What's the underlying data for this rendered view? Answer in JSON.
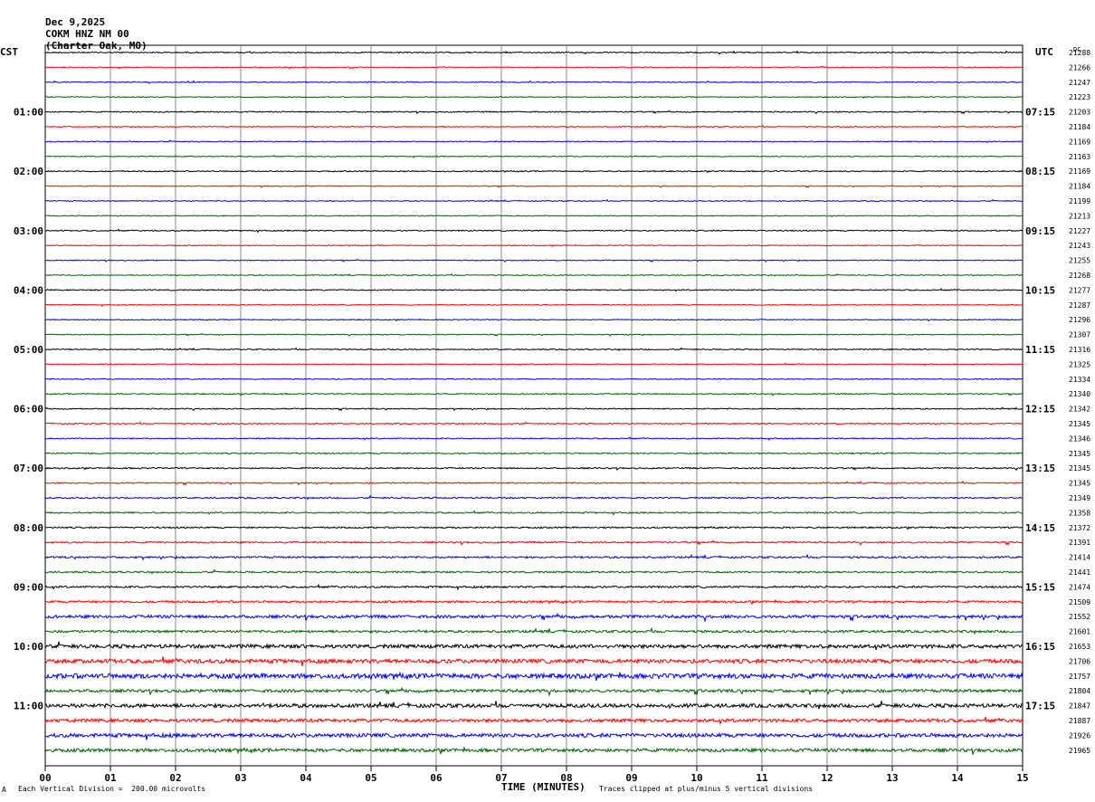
{
  "header": {
    "date": "Dec 9,2025",
    "station": "COKM HNZ NM 00",
    "location": "(Charter Oak, MO)"
  },
  "labels": {
    "left_tz": "CST",
    "right_tz": "UTC",
    "dc": "DC"
  },
  "footer": {
    "left_mark": "A",
    "scale_note": "Each Vertical Division =  200.00 microvolts",
    "clip_note": "Traces clipped at plus/minus 5 vertical divisions"
  },
  "chart_data": {
    "type": "line",
    "title": "",
    "xlabel": "TIME (MINUTES)",
    "ylabel": "",
    "xlim": [
      0,
      15
    ],
    "x_ticks": [
      "00",
      "01",
      "02",
      "03",
      "04",
      "05",
      "06",
      "07",
      "08",
      "09",
      "10",
      "11",
      "12",
      "13",
      "14",
      "15"
    ],
    "trace_colors": [
      "#000000",
      "#ff0000",
      "#0000ff",
      "#006400"
    ],
    "left_hour_labels": [
      "01:00",
      "02:00",
      "03:00",
      "04:00",
      "05:00",
      "06:00",
      "07:00",
      "08:00",
      "09:00",
      "10:00",
      "11:00"
    ],
    "right_hour_labels": [
      "07:15",
      "08:15",
      "09:15",
      "10:15",
      "11:15",
      "12:15",
      "13:15",
      "14:15",
      "15:15",
      "16:15",
      "17:15"
    ],
    "dc_offsets": [
      21288,
      21266,
      21247,
      21223,
      21203,
      21184,
      21169,
      21163,
      21169,
      21184,
      21199,
      21213,
      21227,
      21243,
      21255,
      21268,
      21277,
      21287,
      21296,
      21307,
      21316,
      21325,
      21334,
      21340,
      21342,
      21345,
      21346,
      21345,
      21345,
      21345,
      21349,
      21358,
      21372,
      21391,
      21414,
      21441,
      21474,
      21509,
      21552,
      21601,
      21653,
      21706,
      21757,
      21804,
      21847,
      21887,
      21926,
      21965
    ],
    "noise_level": [
      0.6,
      0.5,
      0.5,
      0.5,
      0.6,
      0.5,
      0.5,
      0.5,
      0.6,
      0.5,
      0.5,
      0.5,
      0.6,
      0.5,
      0.5,
      0.5,
      0.6,
      0.5,
      0.5,
      0.5,
      0.6,
      0.5,
      0.5,
      0.6,
      0.6,
      0.6,
      0.6,
      0.7,
      0.7,
      0.7,
      0.8,
      0.8,
      0.8,
      0.9,
      1.0,
      0.9,
      1.0,
      1.2,
      1.6,
      1.3,
      2.0,
      2.2,
      2.6,
      1.6,
      2.0,
      1.8,
      2.0,
      1.8
    ]
  }
}
